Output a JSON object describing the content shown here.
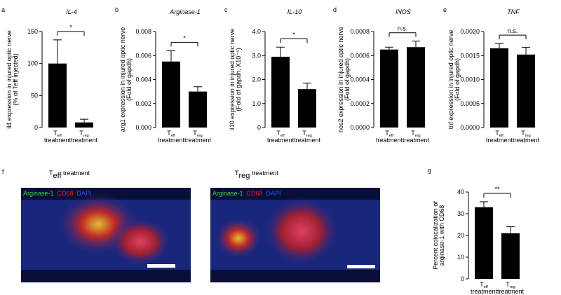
{
  "chart_data": [
    {
      "type": "bar",
      "panel_label": "a",
      "title": "IL-4",
      "ylabel": [
        "il4 expression in injured optic nerve",
        "(% of Teff injected)"
      ],
      "categories": [
        {
          "base": "T",
          "sub": "eff",
          "line2": "treatment"
        },
        {
          "base": "T",
          "sub": "reg",
          "line2": "treatment"
        }
      ],
      "values": [
        100,
        8
      ],
      "errors": [
        37,
        5
      ],
      "color": "#000000",
      "ylim": [
        0,
        150
      ],
      "yticks": [
        0,
        50,
        100,
        150
      ],
      "annotation": "*"
    },
    {
      "type": "bar",
      "panel_label": "b",
      "title": "Arginase-1",
      "ylabel": [
        "arg1 expression in injured optic nerve",
        "(Fold of gapdh)"
      ],
      "categories": [
        {
          "base": "T",
          "sub": "eff",
          "line2": "treatment"
        },
        {
          "base": "T",
          "sub": "reg",
          "line2": "treatment"
        }
      ],
      "values": [
        0.0055,
        0.003
      ],
      "errors": [
        0.0009,
        0.0004
      ],
      "color": "#000000",
      "ylim": [
        0,
        0.008
      ],
      "yticks": [
        {
          "value": 0,
          "label": "0.000"
        },
        0.002,
        0.004,
        0.006,
        0.008
      ],
      "annotation": "*"
    },
    {
      "type": "bar",
      "panel_label": "c",
      "title": "IL-10",
      "ylabel": [
        "il10 expression in injured optic nerve",
        "(Fold of gapdh, X10⁻⁵)"
      ],
      "categories": [
        {
          "base": "T",
          "sub": "eff",
          "line2": "treatment"
        },
        {
          "base": "T",
          "sub": "reg",
          "line2": "treatment"
        }
      ],
      "values": [
        2.95,
        1.6
      ],
      "errors": [
        0.4,
        0.25
      ],
      "color": "#000000",
      "ylim": [
        0,
        4
      ],
      "yticks": [
        0,
        {
          "value": 1,
          "label": "1.0"
        },
        {
          "value": 2,
          "label": "2.0"
        },
        {
          "value": 3,
          "label": "3.0"
        },
        {
          "value": 4,
          "label": "4.0"
        }
      ],
      "annotation": "*"
    },
    {
      "type": "bar",
      "panel_label": "d",
      "title": "iNOS",
      "ylabel": [
        "nos2 expression in injured optic nerve",
        "(Fold of gapdh)"
      ],
      "categories": [
        {
          "base": "T",
          "sub": "eff",
          "line2": "treatment"
        },
        {
          "base": "T",
          "sub": "reg",
          "line2": "treatment"
        }
      ],
      "values": [
        0.00065,
        0.00067
      ],
      "errors": [
        2e-05,
        5e-05
      ],
      "color": "#000000",
      "ylim": [
        0,
        0.0008
      ],
      "yticks": [
        {
          "value": 0,
          "label": "0.0000"
        },
        0.0002,
        0.0004,
        0.0006,
        0.0008
      ],
      "annotation": "n.s."
    },
    {
      "type": "bar",
      "panel_label": "e",
      "title": "TNF",
      "ylabel": [
        "tnf expression in injured optic nerve",
        "(Fold of gapdh)"
      ],
      "categories": [
        {
          "base": "T",
          "sub": "eff",
          "line2": "treatment"
        },
        {
          "base": "T",
          "sub": "reg",
          "line2": "treatment"
        }
      ],
      "values": [
        0.00165,
        0.00152
      ],
      "errors": [
        0.0001,
        0.00015
      ],
      "color": "#000000",
      "ylim": [
        0,
        0.002
      ],
      "yticks": [
        {
          "value": 0,
          "label": "0.0000"
        },
        0.0005,
        {
          "value": 0.001,
          "label": "0.0010"
        },
        0.0015,
        {
          "value": 0.002,
          "label": "0.0020"
        }
      ],
      "annotation": "n.s."
    },
    {
      "type": "bar",
      "panel_label": "g",
      "ylabel": [
        "Percent colocalization of",
        "arginase-1 with CD68"
      ],
      "categories": [
        {
          "base": "T",
          "sub": "eff",
          "line2": "treatment"
        },
        {
          "base": "T",
          "sub": "reg",
          "line2": "treatment"
        }
      ],
      "values": [
        33,
        21
      ],
      "errors": [
        2.5,
        3
      ],
      "color": "#000000",
      "ylim": [
        0,
        40
      ],
      "yticks": [
        0,
        10,
        20,
        30,
        40
      ],
      "annotation": "**"
    }
  ],
  "panel_f": {
    "label": "f",
    "images": [
      {
        "title": {
          "base": "T",
          "sub": "eff",
          "rest": " treatment"
        },
        "legend": [
          "Arginase-1",
          "CD68",
          "DAPI"
        ]
      },
      {
        "title": {
          "base": "T",
          "sub": "reg",
          "rest": " treatment"
        },
        "legend": [
          "Arginase-1",
          "CD68",
          "DAPI"
        ]
      }
    ]
  }
}
